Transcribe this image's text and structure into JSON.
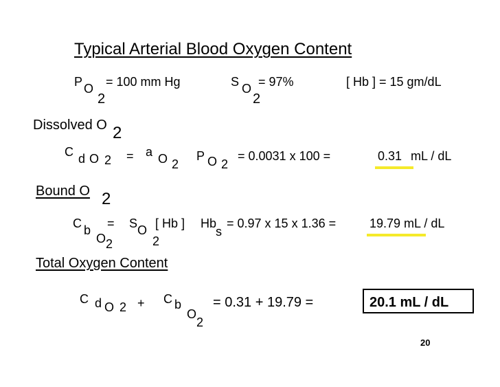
{
  "title": "Typical Arterial Blood Oxygen Content",
  "highlight_color": "#f5ea2b",
  "symbols": {
    "P": "P",
    "S": "S",
    "O": "O",
    "two": "2",
    "C": "C",
    "d": "d",
    "a": "a",
    "b": "b",
    "s": "s",
    "hb_bracket": "[ Hb ]",
    "Hb": "Hb"
  },
  "params": {
    "po2_value": "= 100 mm Hg",
    "so2_value": "=  97%",
    "hb": "[ Hb ] = 15 gm/dL"
  },
  "dissolved": {
    "heading": "Dissolved O",
    "eq1": "=",
    "calc": "=  0.0031  x  100  =",
    "result": "0.31",
    "unit": "mL / dL"
  },
  "bound": {
    "heading": "Bound O",
    "eq1": "=",
    "calc": "= 0.97 x 15 x 1.36 =",
    "result": "19.79 mL / dL"
  },
  "total": {
    "heading": "Total Oxygen Content",
    "plus": "+",
    "calc": "=  0.31  +  19.79  =",
    "result": "20.1 mL / dL"
  },
  "page_number": "20"
}
